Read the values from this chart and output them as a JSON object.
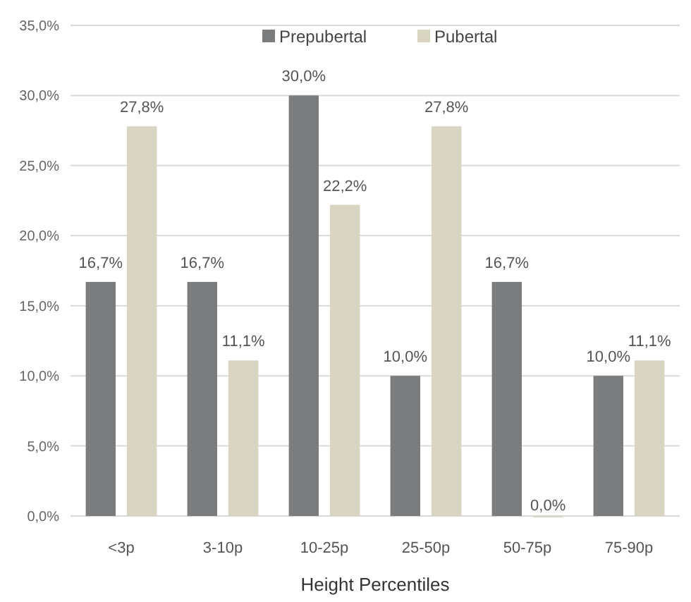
{
  "chart_data": {
    "type": "bar",
    "xlabel": "Height Percentiles",
    "categories": [
      "<3p",
      "3-10p",
      "10-25p",
      "25-50p",
      "50-75p",
      "75-90p"
    ],
    "series": [
      {
        "name": "Prepubertal",
        "color": "#7a7c7e",
        "values": [
          16.7,
          16.7,
          30.0,
          10.0,
          16.7,
          10.0
        ],
        "value_labels": [
          "16,7%",
          "16,7%",
          "30,0%",
          "10,0%",
          "16,7%",
          "10,0%"
        ]
      },
      {
        "name": "Pubertal",
        "color": "#d8d6c3",
        "values": [
          27.8,
          11.1,
          22.2,
          27.8,
          0.0,
          11.1
        ],
        "value_labels": [
          "27,8%",
          "11,1%",
          "22,2%",
          "27,8%",
          "0,0%",
          "11,1%"
        ]
      }
    ],
    "ylim": [
      0,
      35
    ],
    "yticks": [
      {
        "value": 0,
        "label": "0,0%"
      },
      {
        "value": 5,
        "label": "5,0%"
      },
      {
        "value": 10,
        "label": "10,0%"
      },
      {
        "value": 15,
        "label": "15,0%"
      },
      {
        "value": 20,
        "label": "20,0%"
      },
      {
        "value": 25,
        "label": "25,0%"
      },
      {
        "value": 30,
        "label": "30,0%"
      },
      {
        "value": 35,
        "label": "35,0%"
      }
    ],
    "grid": "y",
    "legend": "top"
  }
}
